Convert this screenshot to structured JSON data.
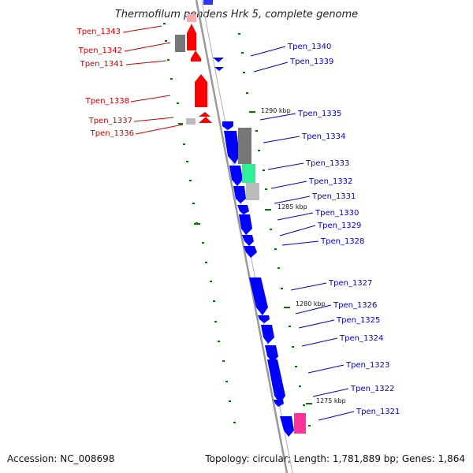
{
  "title": "Thermofilum pendens Hrk 5, complete genome",
  "footer": {
    "accession": "Accession: NC_008698",
    "topology": "Topology: circular; Length: 1,781,889 bp; Genes: 1,864"
  },
  "colors": {
    "forward": "#ff0000",
    "reverse": "#0000ff",
    "forward_label": "#cc0000",
    "reverse_label": "#0000cc",
    "backbone": "#999999",
    "tick": "#007700",
    "rna_dark": "#777777",
    "rna_light": "#bbbbbb",
    "teal": "#33ee99",
    "magenta": "#ff3399"
  },
  "left_labels": [
    {
      "text": "Tpen_1343"
    },
    {
      "text": "Tpen_1342"
    },
    {
      "text": "Tpen_1341"
    },
    {
      "text": "Tpen_1338"
    },
    {
      "text": "Tpen_1337"
    },
    {
      "text": "Tpen_1336"
    }
  ],
  "right_labels": [
    {
      "text": "Tpen_1340"
    },
    {
      "text": "Tpen_1339"
    },
    {
      "text": "Tpen_1335"
    },
    {
      "text": "Tpen_1334"
    },
    {
      "text": "Tpen_1333"
    },
    {
      "text": "Tpen_1332"
    },
    {
      "text": "Tpen_1331"
    },
    {
      "text": "Tpen_1330"
    },
    {
      "text": "Tpen_1329"
    },
    {
      "text": "Tpen_1328"
    },
    {
      "text": "Tpen_1327"
    },
    {
      "text": "Tpen_1326"
    },
    {
      "text": "Tpen_1325"
    },
    {
      "text": "Tpen_1324"
    },
    {
      "text": "Tpen_1323"
    },
    {
      "text": "Tpen_1322"
    },
    {
      "text": "Tpen_1321"
    }
  ],
  "scale_marks": [
    {
      "text": "1290 kbp"
    },
    {
      "text": "1285 kbp"
    },
    {
      "text": "1280 kbp"
    },
    {
      "text": "1275 kbp"
    }
  ]
}
